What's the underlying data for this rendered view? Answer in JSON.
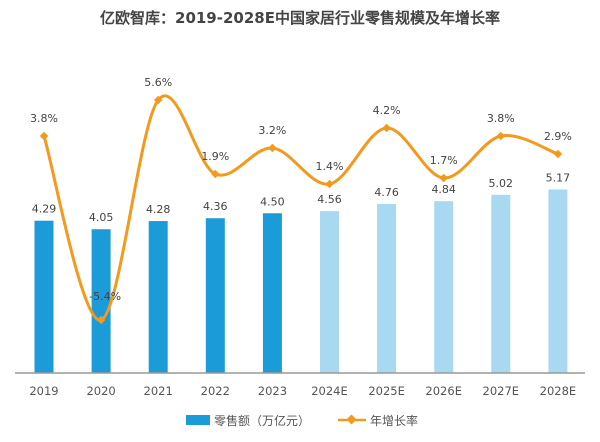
{
  "chart_data": {
    "type": "bar+line",
    "title": "亿欧智库：2019-2028E中国家居行业零售规模及年增长率",
    "categories": [
      "2019",
      "2020",
      "2021",
      "2022",
      "2023",
      "2024E",
      "2025E",
      "2026E",
      "2027E",
      "2028E"
    ],
    "series": [
      {
        "name": "零售额（万亿元）",
        "type": "bar",
        "values": [
          4.29,
          4.05,
          4.28,
          4.36,
          4.5,
          4.56,
          4.76,
          4.84,
          5.02,
          5.17
        ],
        "labels": [
          "4.29",
          "4.05",
          "4.28",
          "4.36",
          "4.50",
          "4.56",
          "4.76",
          "4.84",
          "5.02",
          "5.17"
        ],
        "color_actual": "#1b9bd7",
        "color_forecast": "#a9d9f0"
      },
      {
        "name": "年增长率",
        "type": "line",
        "smooth": true,
        "unit": "%",
        "values": [
          3.8,
          -5.4,
          5.6,
          1.9,
          3.2,
          1.4,
          4.2,
          1.7,
          3.8,
          2.9
        ],
        "labels": [
          "3.8%",
          "-5.4%",
          "5.6%",
          "1.9%",
          "3.2%",
          "1.4%",
          "4.2%",
          "1.7%",
          "3.8%",
          "2.9%"
        ],
        "color": "#f39a1e"
      }
    ],
    "forecast_start": "2024E",
    "legend_position": "bottom",
    "grid": false
  }
}
